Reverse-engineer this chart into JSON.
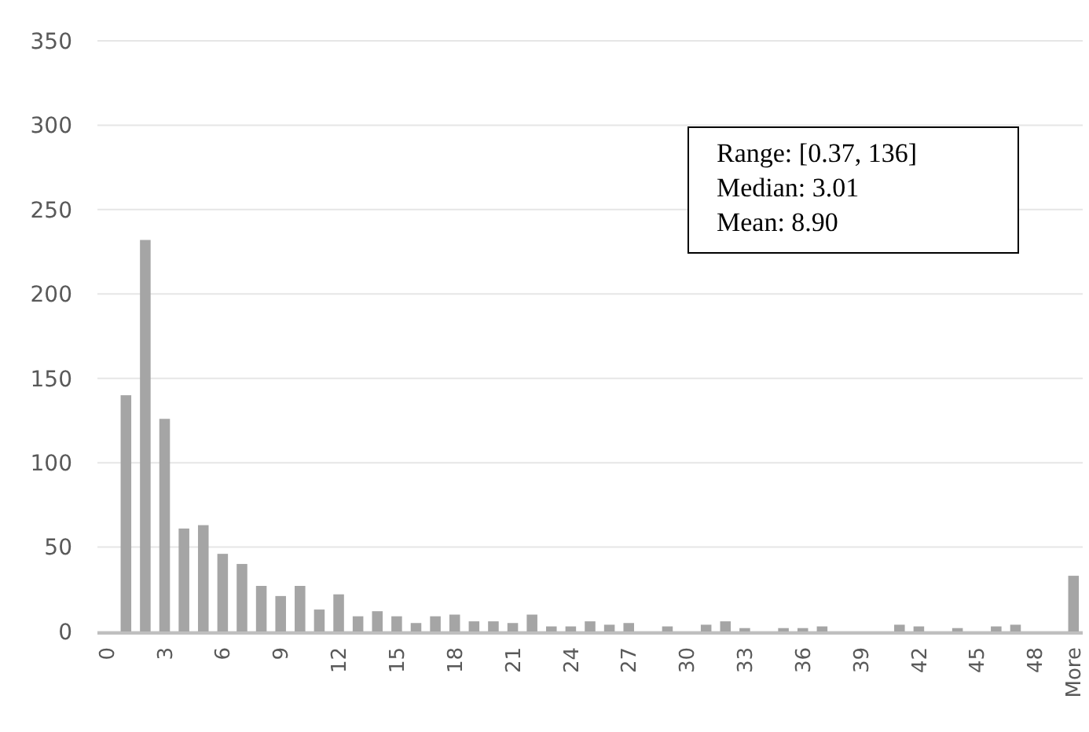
{
  "chart_data": {
    "type": "bar",
    "categories": [
      "0",
      null,
      null,
      "3",
      null,
      null,
      "6",
      null,
      null,
      "9",
      null,
      null,
      "12",
      null,
      null,
      "15",
      null,
      null,
      "18",
      null,
      null,
      "21",
      null,
      null,
      "24",
      null,
      null,
      "27",
      null,
      null,
      "30",
      null,
      null,
      "33",
      null,
      null,
      "36",
      null,
      null,
      "39",
      null,
      null,
      "42",
      null,
      null,
      "45",
      null,
      null,
      "48",
      null,
      "More"
    ],
    "values": [
      0,
      140,
      232,
      126,
      61,
      63,
      46,
      40,
      27,
      21,
      27,
      13,
      22,
      9,
      12,
      9,
      5,
      9,
      10,
      6,
      6,
      5,
      10,
      3,
      3,
      6,
      4,
      5,
      0,
      3,
      0,
      4,
      6,
      2,
      0,
      2,
      2,
      3,
      0,
      0,
      0,
      4,
      3,
      0,
      2,
      0,
      3,
      4,
      0,
      0,
      33
    ],
    "color": "#a5a5a5",
    "ylim": [
      0,
      350
    ],
    "yticks": [
      0,
      50,
      100,
      150,
      200,
      250,
      300,
      350
    ],
    "grid": "y",
    "annotations": [
      "Range: [0.37, 136]",
      "Median: 3.01",
      "Mean: 8.90"
    ]
  }
}
